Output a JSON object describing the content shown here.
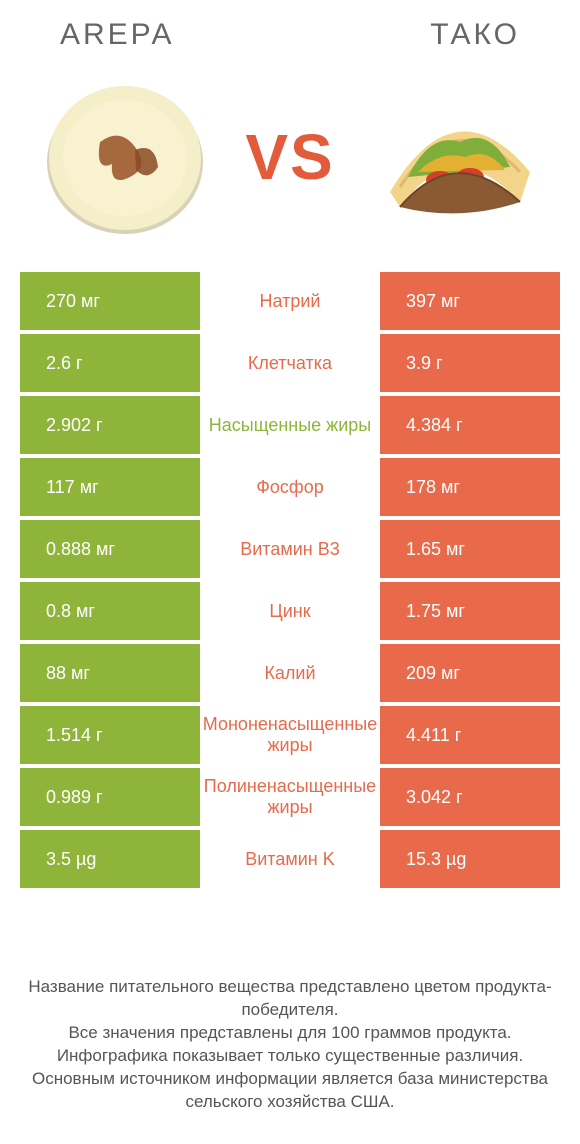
{
  "header": {
    "left_title": "Arepa",
    "right_title": "Тако"
  },
  "vs_label": "VS",
  "colors": {
    "left_bg": "#8fb43a",
    "right_bg": "#e86a4a",
    "left_text": "#8fb43a",
    "right_text": "#e86a4a",
    "row_gap": "#ffffff"
  },
  "table": {
    "rows": [
      {
        "left": "270 мг",
        "label": "Натрий",
        "right": "397 мг",
        "winner": "right"
      },
      {
        "left": "2.6 г",
        "label": "Клетчатка",
        "right": "3.9 г",
        "winner": "right"
      },
      {
        "left": "2.902 г",
        "label": "Насыщенные жиры",
        "right": "4.384 г",
        "winner": "left"
      },
      {
        "left": "117 мг",
        "label": "Фосфор",
        "right": "178 мг",
        "winner": "right"
      },
      {
        "left": "0.888 мг",
        "label": "Витамин B3",
        "right": "1.65 мг",
        "winner": "right"
      },
      {
        "left": "0.8 мг",
        "label": "Цинк",
        "right": "1.75 мг",
        "winner": "right"
      },
      {
        "left": "88 мг",
        "label": "Калий",
        "right": "209 мг",
        "winner": "right"
      },
      {
        "left": "1.514 г",
        "label": "Мононенасыщенные жиры",
        "right": "4.411 г",
        "winner": "right"
      },
      {
        "left": "0.989 г",
        "label": "Полиненасыщенные жиры",
        "right": "3.042 г",
        "winner": "right"
      },
      {
        "left": "3.5 µg",
        "label": "Витамин K",
        "right": "15.3 µg",
        "winner": "right"
      }
    ]
  },
  "footer": {
    "line1": "Название питательного вещества представлено цветом продукта-победителя.",
    "line2": "Все значения представлены для 100 граммов продукта.",
    "line3": "Инфографика показывает только существенные различия.",
    "line4": "Основным источником информации является база министерства сельского хозяйства США."
  }
}
